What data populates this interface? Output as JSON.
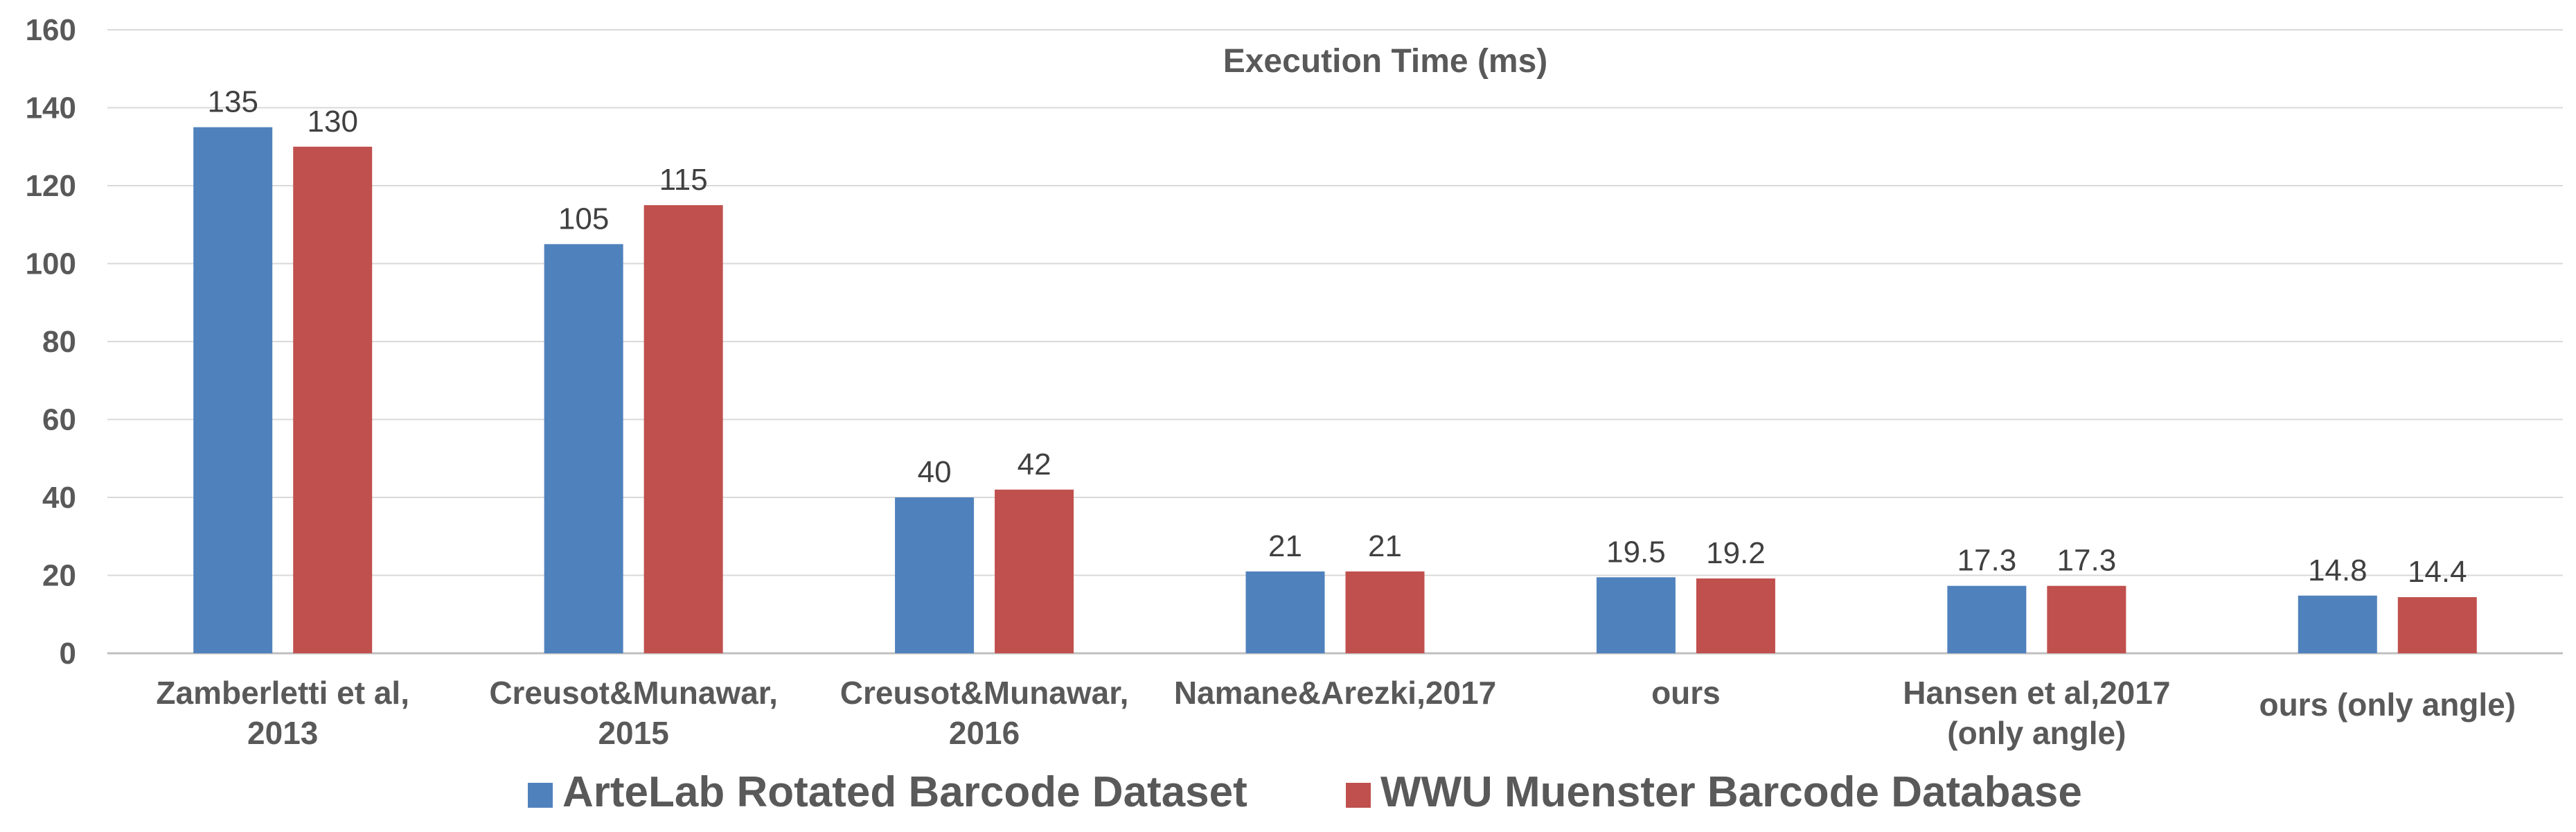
{
  "chart_data": {
    "type": "bar",
    "title": "Execution Time (ms)",
    "xlabel": "",
    "ylabel": "",
    "ylim": [
      0,
      160
    ],
    "yticks": [
      0,
      20,
      40,
      60,
      80,
      100,
      120,
      140,
      160
    ],
    "grid": true,
    "legend_position": "bottom",
    "categories": [
      [
        "Zamberletti et al,",
        "2013"
      ],
      [
        "Creusot&Munawar,",
        "2015"
      ],
      [
        "Creusot&Munawar,",
        "2016"
      ],
      [
        "Namane&Arezki,2017"
      ],
      [
        "ours"
      ],
      [
        "Hansen et al,2017",
        "(only angle)"
      ],
      [
        "ours  (only angle)"
      ]
    ],
    "series": [
      {
        "name": "ArteLab Rotated Barcode Dataset",
        "color": "#4F81BD",
        "values": [
          135,
          105,
          40,
          21,
          19.5,
          17.3,
          14.8
        ]
      },
      {
        "name": "WWU Muenster Barcode Database",
        "color": "#C0504D",
        "values": [
          130,
          115,
          42,
          21,
          19.2,
          17.3,
          14.4
        ]
      }
    ]
  }
}
